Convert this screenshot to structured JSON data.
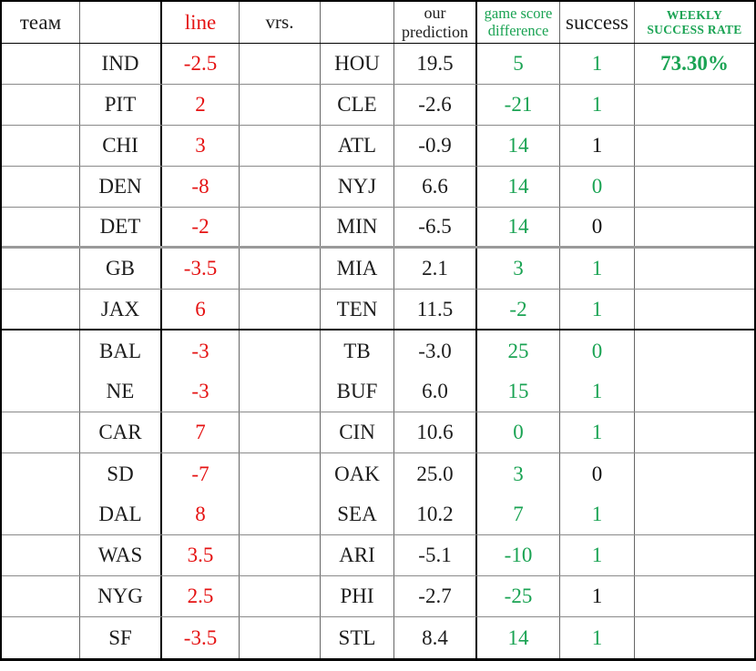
{
  "colors": {
    "line_red": "#e51212",
    "accent_green": "#1aa353",
    "grid_gray": "#8a8a8a",
    "border_black": "#000000"
  },
  "chart_data": {
    "type": "table",
    "header": {
      "team": "теам",
      "line": "line",
      "vrs": "vrs.",
      "our_prediction": [
        "our",
        "prediction"
      ],
      "game_score_difference": [
        "game score",
        "difference"
      ],
      "success": "success",
      "weekly_success_rate": [
        "WEEKLY",
        "SUCCESS RATE"
      ]
    },
    "weekly_success_rate_value": "73.30%",
    "rows": [
      {
        "team": "IND",
        "line": "-2.5",
        "opponent": "HOU",
        "our_prediction": "19.5",
        "game_score_difference": "5",
        "success": "1",
        "success_color": "green",
        "separator_below": "thin"
      },
      {
        "team": "PIT",
        "line": "2",
        "opponent": "CLE",
        "our_prediction": "-2.6",
        "game_score_difference": "-21",
        "success": "1",
        "success_color": "green",
        "separator_below": "thin"
      },
      {
        "team": "CHI",
        "line": "3",
        "opponent": "ATL",
        "our_prediction": "-0.9",
        "game_score_difference": "14",
        "success": "1",
        "success_color": "black",
        "separator_below": "thin"
      },
      {
        "team": "DEN",
        "line": "-8",
        "opponent": "NYJ",
        "our_prediction": "6.6",
        "game_score_difference": "14",
        "success": "0",
        "success_color": "green",
        "separator_below": "thin"
      },
      {
        "team": "DET",
        "line": "-2",
        "opponent": "MIN",
        "our_prediction": "-6.5",
        "game_score_difference": "14",
        "success": "0",
        "success_color": "black",
        "separator_below": "thick-gray"
      },
      {
        "team": "GB",
        "line": "-3.5",
        "opponent": "MIA",
        "our_prediction": "2.1",
        "game_score_difference": "3",
        "success": "1",
        "success_color": "green",
        "separator_below": "thin"
      },
      {
        "team": "JAX",
        "line": "6",
        "opponent": "TEN",
        "our_prediction": "11.5",
        "game_score_difference": "-2",
        "success": "1",
        "success_color": "green",
        "separator_below": "thick-black"
      },
      {
        "team": "BAL",
        "line": "-3",
        "opponent": "TB",
        "our_prediction": "-3.0",
        "game_score_difference": "25",
        "success": "0",
        "success_color": "green",
        "separator_below": "none"
      },
      {
        "team": "NE",
        "line": "-3",
        "opponent": "BUF",
        "our_prediction": "6.0",
        "game_score_difference": "15",
        "success": "1",
        "success_color": "green",
        "separator_below": "thin"
      },
      {
        "team": "CAR",
        "line": "7",
        "opponent": "CIN",
        "our_prediction": "10.6",
        "game_score_difference": "0",
        "success": "1",
        "success_color": "green",
        "separator_below": "thin"
      },
      {
        "team": "SD",
        "line": "-7",
        "opponent": "OAK",
        "our_prediction": "25.0",
        "game_score_difference": "3",
        "success": "0",
        "success_color": "black",
        "separator_below": "none"
      },
      {
        "team": "DAL",
        "line": "8",
        "opponent": "SEA",
        "our_prediction": "10.2",
        "game_score_difference": "7",
        "success": "1",
        "success_color": "green",
        "separator_below": "thin"
      },
      {
        "team": "WAS",
        "line": "3.5",
        "opponent": "ARI",
        "our_prediction": "-5.1",
        "game_score_difference": "-10",
        "success": "1",
        "success_color": "green",
        "separator_below": "thin"
      },
      {
        "team": "NYG",
        "line": "2.5",
        "opponent": "PHI",
        "our_prediction": "-2.7",
        "game_score_difference": "-25",
        "success": "1",
        "success_color": "black",
        "separator_below": "thin"
      },
      {
        "team": "SF",
        "line": "-3.5",
        "opponent": "STL",
        "our_prediction": "8.4",
        "game_score_difference": "14",
        "success": "1",
        "success_color": "green",
        "separator_below": "thin"
      }
    ]
  }
}
